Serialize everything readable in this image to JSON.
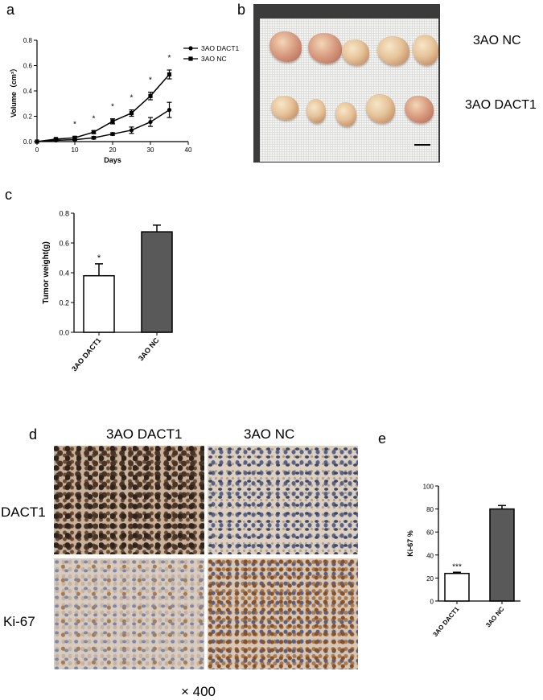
{
  "panels": {
    "a": "a",
    "b": "b",
    "c": "c",
    "d": "d",
    "e": "e"
  },
  "panel_b": {
    "label_nc": "3AO NC",
    "label_dact1": "3AO DACT1"
  },
  "panel_d": {
    "col1": "3AO DACT1",
    "col2": "3AO NC",
    "row1": "DACT1",
    "row2": "Ki-67",
    "magnification": "× 400"
  },
  "colors": {
    "dact1_bar": "#ffffff",
    "nc_bar": "#595959",
    "axis": "#000000"
  },
  "chart_data": [
    {
      "id": "a",
      "type": "line",
      "xlabel": "Days",
      "ylabel": "Volume（cm³）",
      "xlim": [
        0,
        40
      ],
      "ylim": [
        0,
        0.8
      ],
      "xticks": [
        "0",
        "10",
        "20",
        "30",
        "40"
      ],
      "yticks": [
        "0.0",
        "0.2",
        "0.4",
        "0.6",
        "0.8"
      ],
      "legend": "top-right",
      "x": [
        0,
        5,
        10,
        15,
        20,
        25,
        30,
        35
      ],
      "series": [
        {
          "name": "3AO DACT1",
          "marker": "circle",
          "values": [
            0,
            0.01,
            0.015,
            0.03,
            0.06,
            0.09,
            0.155,
            0.25
          ],
          "errors": [
            0,
            0.005,
            0.005,
            0.01,
            0.01,
            0.025,
            0.035,
            0.06
          ]
        },
        {
          "name": "3AO NC",
          "marker": "square",
          "values": [
            0,
            0.02,
            0.03,
            0.075,
            0.16,
            0.225,
            0.36,
            0.53
          ],
          "errors": [
            0,
            0.005,
            0.01,
            0.01,
            0.02,
            0.025,
            0.03,
            0.035
          ]
        }
      ],
      "significance": [
        {
          "x": 10,
          "label": "*"
        },
        {
          "x": 15,
          "label": "*"
        },
        {
          "x": 20,
          "label": "*"
        },
        {
          "x": 25,
          "label": "*"
        },
        {
          "x": 30,
          "label": "*"
        },
        {
          "x": 35,
          "label": "*"
        }
      ]
    },
    {
      "id": "c",
      "type": "bar",
      "ylabel": "Tumor weight(g)",
      "ylim": [
        0,
        0.8
      ],
      "yticks": [
        "0.0",
        "0.2",
        "0.4",
        "0.6",
        "0.8"
      ],
      "categories": [
        "3AO DACT1",
        "3AO NC"
      ],
      "values": [
        0.38,
        0.675
      ],
      "errors": [
        0.08,
        0.045
      ],
      "annotations": [
        "*",
        ""
      ]
    },
    {
      "id": "e",
      "type": "bar",
      "ylabel": "Ki-67 %",
      "ylim": [
        0,
        100
      ],
      "yticks": [
        "0",
        "20",
        "40",
        "60",
        "80",
        "100"
      ],
      "categories": [
        "3AO DACT1",
        "3AO NC"
      ],
      "values": [
        24,
        80
      ],
      "errors": [
        1,
        3
      ],
      "annotations": [
        "***",
        ""
      ]
    }
  ]
}
